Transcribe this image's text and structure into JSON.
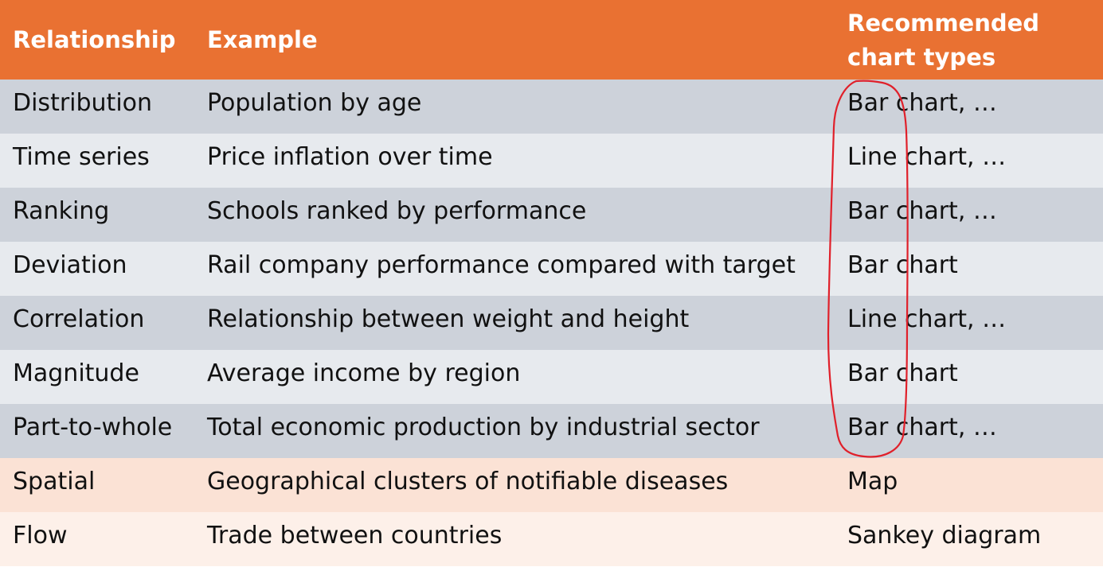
{
  "header": {
    "col1": "Relationship",
    "col2": "Example",
    "col3_line1": "Recommended",
    "col3_line2": "chart types"
  },
  "rows": [
    {
      "relationship": "Distribution",
      "example": "Population by age",
      "chart": "Bar chart, …",
      "shade": "gray-dark"
    },
    {
      "relationship": "Time series",
      "example": "Price inflation over time",
      "chart": "Line chart, …",
      "shade": "gray-light"
    },
    {
      "relationship": "Ranking",
      "example": "Schools ranked by performance",
      "chart": "Bar chart, …",
      "shade": "gray-dark"
    },
    {
      "relationship": "Deviation",
      "example": "Rail company performance compared with target",
      "chart": "Bar chart",
      "shade": "gray-light"
    },
    {
      "relationship": "Correlation",
      "example": "Relationship between weight and height",
      "chart": "Line chart, …",
      "shade": "gray-dark"
    },
    {
      "relationship": "Magnitude",
      "example": "Average income by region",
      "chart": "Bar chart",
      "shade": "gray-light"
    },
    {
      "relationship": "Part-to-whole",
      "example": "Total economic production by industrial sector",
      "chart": "Bar chart, …",
      "shade": "gray-dark"
    },
    {
      "relationship": "Spatial",
      "example": "Geographical clusters of notifiable diseases",
      "chart": "Map",
      "shade": "peach-dark"
    },
    {
      "relationship": "Flow",
      "example": "Trade between countries",
      "chart": "Sankey diagram",
      "shade": "peach-light"
    }
  ],
  "colors": {
    "header_bg": "#E97132",
    "annotation_stroke": "#E0202A"
  }
}
